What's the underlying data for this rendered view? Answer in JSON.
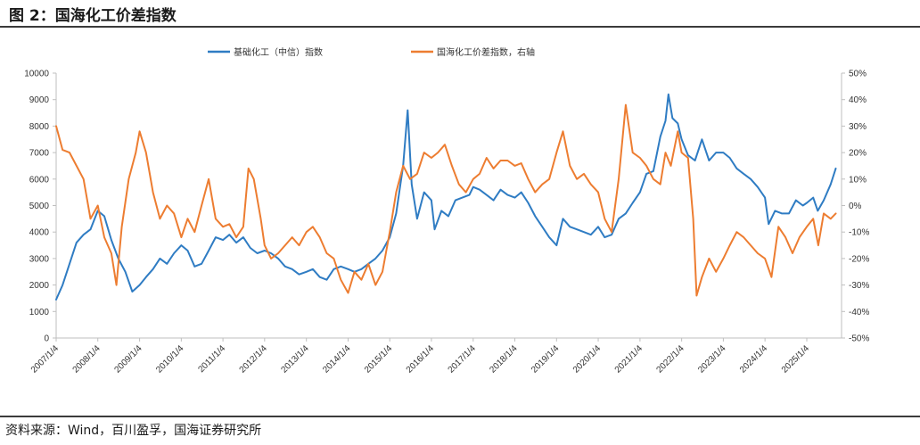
{
  "figure": {
    "title": "图 2：国海化工价差指数",
    "source": "资料来源：Wind，百川盈孚，国海证券研究所"
  },
  "colors": {
    "series1": "#2f7cc3",
    "series2": "#ed7d31",
    "axis": "#bfbfbf"
  },
  "chart_data": {
    "type": "line",
    "legend": {
      "position": "top-center"
    },
    "grid": false,
    "y_left": {
      "min": 0,
      "max": 10000,
      "ticks": [
        "0",
        "1000",
        "2000",
        "3000",
        "4000",
        "5000",
        "6000",
        "7000",
        "8000",
        "9000",
        "10000"
      ]
    },
    "y_right": {
      "min": -50,
      "max": 50,
      "unit": "%",
      "ticks": [
        "-50%",
        "-40%",
        "-30%",
        "-20%",
        "-10%",
        "0%",
        "10%",
        "20%",
        "30%",
        "40%",
        "50%"
      ]
    },
    "x_ticks": [
      "2007/1/4",
      "2008/1/4",
      "2009/1/4",
      "2010/1/4",
      "2011/1/4",
      "2012/1/4",
      "2013/1/4",
      "2014/1/4",
      "2015/1/4",
      "2016/1/4",
      "2017/1/4",
      "2018/1/4",
      "2019/1/4",
      "2020/1/4",
      "2021/1/4",
      "2022/1/4",
      "2023/1/4",
      "2024/1/4",
      "2025/1/4"
    ],
    "series": [
      {
        "name": "基础化工（中信）指数",
        "axis": "left",
        "points": [
          [
            "2007/1/4",
            1450
          ],
          [
            "2007/3/1",
            2000
          ],
          [
            "2007/5/1",
            2800
          ],
          [
            "2007/7/1",
            3600
          ],
          [
            "2007/9/1",
            3900
          ],
          [
            "2007/11/1",
            4100
          ],
          [
            "2008/1/4",
            4800
          ],
          [
            "2008/3/1",
            4600
          ],
          [
            "2008/5/1",
            3700
          ],
          [
            "2008/7/1",
            3000
          ],
          [
            "2008/9/1",
            2500
          ],
          [
            "2008/11/1",
            1750
          ],
          [
            "2009/1/4",
            2000
          ],
          [
            "2009/3/1",
            2300
          ],
          [
            "2009/5/1",
            2600
          ],
          [
            "2009/7/1",
            3000
          ],
          [
            "2009/9/1",
            2800
          ],
          [
            "2009/11/1",
            3200
          ],
          [
            "2010/1/4",
            3500
          ],
          [
            "2010/3/1",
            3300
          ],
          [
            "2010/5/1",
            2700
          ],
          [
            "2010/7/1",
            2800
          ],
          [
            "2010/9/1",
            3300
          ],
          [
            "2010/11/1",
            3800
          ],
          [
            "2011/1/4",
            3700
          ],
          [
            "2011/3/1",
            3900
          ],
          [
            "2011/5/1",
            3600
          ],
          [
            "2011/7/1",
            3800
          ],
          [
            "2011/9/1",
            3400
          ],
          [
            "2011/11/1",
            3200
          ],
          [
            "2012/1/4",
            3300
          ],
          [
            "2012/3/1",
            3200
          ],
          [
            "2012/5/1",
            3000
          ],
          [
            "2012/7/1",
            2700
          ],
          [
            "2012/9/1",
            2600
          ],
          [
            "2012/11/1",
            2400
          ],
          [
            "2013/1/4",
            2500
          ],
          [
            "2013/3/1",
            2600
          ],
          [
            "2013/5/1",
            2300
          ],
          [
            "2013/7/1",
            2200
          ],
          [
            "2013/9/1",
            2600
          ],
          [
            "2013/11/1",
            2700
          ],
          [
            "2014/1/4",
            2600
          ],
          [
            "2014/3/1",
            2500
          ],
          [
            "2014/5/1",
            2600
          ],
          [
            "2014/7/1",
            2800
          ],
          [
            "2014/9/1",
            3000
          ],
          [
            "2014/11/1",
            3300
          ],
          [
            "2015/1/4",
            3800
          ],
          [
            "2015/3/1",
            4700
          ],
          [
            "2015/5/1",
            6500
          ],
          [
            "2015/6/10",
            8600
          ],
          [
            "2015/7/15",
            5800
          ],
          [
            "2015/9/1",
            4500
          ],
          [
            "2015/11/1",
            5500
          ],
          [
            "2016/1/4",
            5200
          ],
          [
            "2016/2/1",
            4100
          ],
          [
            "2016/4/1",
            4800
          ],
          [
            "2016/6/1",
            4600
          ],
          [
            "2016/8/1",
            5200
          ],
          [
            "2016/10/1",
            5300
          ],
          [
            "2016/12/1",
            5400
          ],
          [
            "2017/1/4",
            5700
          ],
          [
            "2017/3/1",
            5600
          ],
          [
            "2017/5/1",
            5400
          ],
          [
            "2017/7/1",
            5200
          ],
          [
            "2017/9/1",
            5600
          ],
          [
            "2017/11/1",
            5400
          ],
          [
            "2018/1/4",
            5300
          ],
          [
            "2018/3/1",
            5500
          ],
          [
            "2018/5/1",
            5100
          ],
          [
            "2018/7/1",
            4600
          ],
          [
            "2018/9/1",
            4200
          ],
          [
            "2018/11/1",
            3800
          ],
          [
            "2019/1/4",
            3500
          ],
          [
            "2019/3/1",
            4500
          ],
          [
            "2019/5/1",
            4200
          ],
          [
            "2019/7/1",
            4100
          ],
          [
            "2019/9/1",
            4000
          ],
          [
            "2019/11/1",
            3900
          ],
          [
            "2020/1/4",
            4200
          ],
          [
            "2020/3/1",
            3800
          ],
          [
            "2020/5/1",
            3900
          ],
          [
            "2020/7/1",
            4500
          ],
          [
            "2020/9/1",
            4700
          ],
          [
            "2020/11/1",
            5100
          ],
          [
            "2021/1/4",
            5500
          ],
          [
            "2021/3/1",
            6200
          ],
          [
            "2021/5/1",
            6300
          ],
          [
            "2021/7/1",
            7600
          ],
          [
            "2021/8/15",
            8200
          ],
          [
            "2021/9/10",
            9200
          ],
          [
            "2021/10/15",
            8300
          ],
          [
            "2021/12/1",
            8100
          ],
          [
            "2022/1/4",
            7500
          ],
          [
            "2022/3/1",
            6900
          ],
          [
            "2022/5/1",
            6700
          ],
          [
            "2022/7/1",
            7500
          ],
          [
            "2022/9/1",
            6700
          ],
          [
            "2022/11/1",
            7000
          ],
          [
            "2023/1/4",
            7000
          ],
          [
            "2023/3/1",
            6800
          ],
          [
            "2023/5/1",
            6400
          ],
          [
            "2023/7/1",
            6200
          ],
          [
            "2023/9/1",
            6000
          ],
          [
            "2023/11/1",
            5700
          ],
          [
            "2024/1/4",
            5300
          ],
          [
            "2024/2/5",
            4300
          ],
          [
            "2024/4/1",
            4800
          ],
          [
            "2024/6/1",
            4700
          ],
          [
            "2024/8/1",
            4700
          ],
          [
            "2024/10/1",
            5200
          ],
          [
            "2024/12/1",
            5000
          ],
          [
            "2025/1/4",
            5100
          ],
          [
            "2025/3/1",
            5300
          ],
          [
            "2025/4/10",
            4800
          ],
          [
            "2025/6/1",
            5200
          ],
          [
            "2025/8/1",
            5800
          ],
          [
            "2025/9/15",
            6400
          ]
        ]
      },
      {
        "name": "国海化工价差指数，右轴",
        "axis": "right",
        "points": [
          [
            "2007/1/4",
            30
          ],
          [
            "2007/3/1",
            21
          ],
          [
            "2007/5/1",
            20
          ],
          [
            "2007/7/1",
            15
          ],
          [
            "2007/9/1",
            10
          ],
          [
            "2007/11/1",
            -5
          ],
          [
            "2008/1/4",
            0
          ],
          [
            "2008/3/1",
            -12
          ],
          [
            "2008/5/1",
            -18
          ],
          [
            "2008/6/15",
            -30
          ],
          [
            "2008/8/1",
            -8
          ],
          [
            "2008/10/1",
            10
          ],
          [
            "2008/12/1",
            20
          ],
          [
            "2009/1/4",
            28
          ],
          [
            "2009/3/1",
            20
          ],
          [
            "2009/5/1",
            5
          ],
          [
            "2009/7/1",
            -5
          ],
          [
            "2009/9/1",
            0
          ],
          [
            "2009/11/1",
            -3
          ],
          [
            "2010/1/4",
            -12
          ],
          [
            "2010/3/1",
            -5
          ],
          [
            "2010/5/1",
            -10
          ],
          [
            "2010/7/1",
            0
          ],
          [
            "2010/9/1",
            10
          ],
          [
            "2010/11/1",
            -5
          ],
          [
            "2011/1/4",
            -8
          ],
          [
            "2011/3/1",
            -7
          ],
          [
            "2011/5/1",
            -12
          ],
          [
            "2011/7/1",
            -8
          ],
          [
            "2011/8/15",
            14
          ],
          [
            "2011/10/1",
            10
          ],
          [
            "2011/12/1",
            -5
          ],
          [
            "2012/1/4",
            -15
          ],
          [
            "2012/3/1",
            -20
          ],
          [
            "2012/5/1",
            -18
          ],
          [
            "2012/7/1",
            -15
          ],
          [
            "2012/9/1",
            -12
          ],
          [
            "2012/11/1",
            -15
          ],
          [
            "2013/1/4",
            -10
          ],
          [
            "2013/3/1",
            -8
          ],
          [
            "2013/5/1",
            -12
          ],
          [
            "2013/7/1",
            -18
          ],
          [
            "2013/9/1",
            -20
          ],
          [
            "2013/11/1",
            -28
          ],
          [
            "2014/1/4",
            -33
          ],
          [
            "2014/3/1",
            -25
          ],
          [
            "2014/5/1",
            -28
          ],
          [
            "2014/7/1",
            -22
          ],
          [
            "2014/9/1",
            -30
          ],
          [
            "2014/11/1",
            -25
          ],
          [
            "2015/1/4",
            -10
          ],
          [
            "2015/3/1",
            5
          ],
          [
            "2015/5/1",
            15
          ],
          [
            "2015/7/1",
            10
          ],
          [
            "2015/9/1",
            12
          ],
          [
            "2015/11/1",
            20
          ],
          [
            "2016/1/4",
            18
          ],
          [
            "2016/3/1",
            20
          ],
          [
            "2016/5/1",
            23
          ],
          [
            "2016/7/1",
            15
          ],
          [
            "2016/9/1",
            8
          ],
          [
            "2016/11/1",
            5
          ],
          [
            "2017/1/4",
            10
          ],
          [
            "2017/3/1",
            12
          ],
          [
            "2017/5/1",
            18
          ],
          [
            "2017/7/1",
            14
          ],
          [
            "2017/9/1",
            17
          ],
          [
            "2017/11/1",
            17
          ],
          [
            "2018/1/4",
            15
          ],
          [
            "2018/3/1",
            16
          ],
          [
            "2018/5/1",
            10
          ],
          [
            "2018/7/1",
            5
          ],
          [
            "2018/9/1",
            8
          ],
          [
            "2018/11/1",
            10
          ],
          [
            "2019/1/4",
            20
          ],
          [
            "2019/3/1",
            28
          ],
          [
            "2019/5/1",
            15
          ],
          [
            "2019/7/1",
            10
          ],
          [
            "2019/9/1",
            12
          ],
          [
            "2019/11/1",
            8
          ],
          [
            "2020/1/4",
            5
          ],
          [
            "2020/3/1",
            -5
          ],
          [
            "2020/5/1",
            -10
          ],
          [
            "2020/7/1",
            10
          ],
          [
            "2020/9/1",
            38
          ],
          [
            "2020/11/1",
            20
          ],
          [
            "2021/1/4",
            18
          ],
          [
            "2021/3/1",
            15
          ],
          [
            "2021/5/1",
            10
          ],
          [
            "2021/7/1",
            8
          ],
          [
            "2021/8/15",
            20
          ],
          [
            "2021/10/1",
            15
          ],
          [
            "2021/12/1",
            28
          ],
          [
            "2022/1/4",
            20
          ],
          [
            "2022/3/1",
            18
          ],
          [
            "2022/4/15",
            -5
          ],
          [
            "2022/5/15",
            -34
          ],
          [
            "2022/7/1",
            -27
          ],
          [
            "2022/9/1",
            -20
          ],
          [
            "2022/11/1",
            -25
          ],
          [
            "2023/1/4",
            -20
          ],
          [
            "2023/3/1",
            -15
          ],
          [
            "2023/5/1",
            -10
          ],
          [
            "2023/7/1",
            -12
          ],
          [
            "2023/9/1",
            -15
          ],
          [
            "2023/11/1",
            -18
          ],
          [
            "2024/1/4",
            -20
          ],
          [
            "2024/3/1",
            -27
          ],
          [
            "2024/5/1",
            -8
          ],
          [
            "2024/7/1",
            -12
          ],
          [
            "2024/9/1",
            -18
          ],
          [
            "2024/11/1",
            -12
          ],
          [
            "2025/1/4",
            -8
          ],
          [
            "2025/3/1",
            -5
          ],
          [
            "2025/4/15",
            -15
          ],
          [
            "2025/6/1",
            -3
          ],
          [
            "2025/8/1",
            -5
          ],
          [
            "2025/9/15",
            -3
          ]
        ]
      }
    ]
  }
}
